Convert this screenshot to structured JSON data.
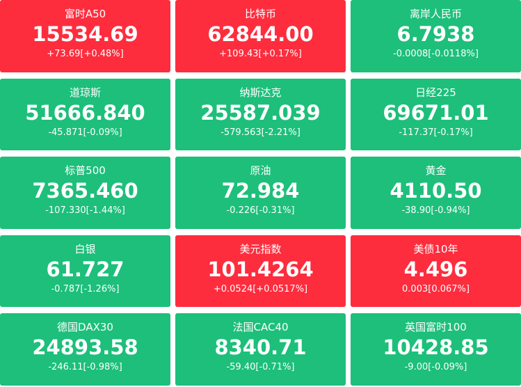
{
  "tiles": [
    {
      "name": "富时A50",
      "price": "15534.69",
      "change": "+73.69[+0.48%]",
      "color": "#fd2d3e"
    },
    {
      "name": "比特币",
      "price": "62844.00",
      "change": "+109.43[+0.17%]",
      "color": "#fd2d3e"
    },
    {
      "name": "离岸人民币",
      "price": "6.7938",
      "change": "-0.0008[-0.0118%]",
      "color": "#1dbf7b"
    },
    {
      "name": "道琼斯",
      "price": "51666.840",
      "change": "-45.871[-0.09%]",
      "color": "#1dbf7b"
    },
    {
      "name": "纳斯达克",
      "price": "25587.039",
      "change": "-579.563[-2.21%]",
      "color": "#1dbf7b"
    },
    {
      "name": "日经225",
      "price": "69671.01",
      "change": "-117.37[-0.17%]",
      "color": "#1dbf7b"
    },
    {
      "name": "标普500",
      "price": "7365.460",
      "change": "-107.330[-1.44%]",
      "color": "#1dbf7b"
    },
    {
      "name": "原油",
      "price": "72.984",
      "change": "-0.226[-0.31%]",
      "color": "#1dbf7b"
    },
    {
      "name": "黄金",
      "price": "4110.50",
      "change": "-38.90[-0.94%]",
      "color": "#1dbf7b"
    },
    {
      "name": "白银",
      "price": "61.727",
      "change": "-0.787[-1.26%]",
      "color": "#1dbf7b"
    },
    {
      "name": "美元指数",
      "price": "101.4264",
      "change": "+0.0524[+0.0517%]",
      "color": "#fd2d3e"
    },
    {
      "name": "美债10年",
      "price": "4.496",
      "change": "0.003[0.067%]",
      "color": "#fd2d3e"
    },
    {
      "name": "德国DAX30",
      "price": "24893.58",
      "change": "-246.11[-0.98%]",
      "color": "#1dbf7b"
    },
    {
      "name": "法国CAC40",
      "price": "8340.71",
      "change": "-59.40[-0.71%]",
      "color": "#1dbf7b"
    },
    {
      "name": "英国富时100",
      "price": "10428.85",
      "change": "-9.00[-0.09%]",
      "color": "#1dbf7b"
    }
  ]
}
